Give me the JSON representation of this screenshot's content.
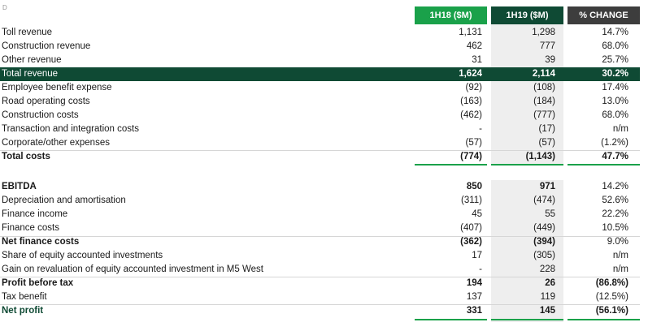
{
  "corner_mark": "D",
  "columns": {
    "h1_2018": "1H18 ($M)",
    "h1_2019": "1H19 ($M)",
    "change": "% CHANGE"
  },
  "section1": [
    {
      "label": "Toll revenue",
      "h18": "1,131",
      "h19": "1,298",
      "chg": "14.7%"
    },
    {
      "label": "Construction revenue",
      "h18": "462",
      "h19": "777",
      "chg": "68.0%"
    },
    {
      "label": "Other revenue",
      "h18": "31",
      "h19": "39",
      "chg": "25.7%"
    },
    {
      "label": "Total revenue",
      "h18": "1,624",
      "h19": "2,114",
      "chg": "30.2%"
    },
    {
      "label": "Employee benefit expense",
      "h18": "(92)",
      "h19": "(108)",
      "chg": "17.4%"
    },
    {
      "label": "Road operating costs",
      "h18": "(163)",
      "h19": "(184)",
      "chg": "13.0%"
    },
    {
      "label": "Construction costs",
      "h18": "(462)",
      "h19": "(777)",
      "chg": "68.0%"
    },
    {
      "label": "Transaction and integration costs",
      "h18": "-",
      "h19": "(17)",
      "chg": "n/m"
    },
    {
      "label": "Corporate/other expenses",
      "h18": "(57)",
      "h19": "(57)",
      "chg": "(1.2%)"
    },
    {
      "label": "Total costs",
      "h18": "(774)",
      "h19": "(1,143)",
      "chg": "47.7%"
    }
  ],
  "section2": [
    {
      "label": "EBITDA",
      "h18": "850",
      "h19": "971",
      "chg": "14.2%"
    },
    {
      "label": "Depreciation and amortisation",
      "h18": "(311)",
      "h19": "(474)",
      "chg": "52.6%"
    },
    {
      "label": "Finance income",
      "h18": "45",
      "h19": "55",
      "chg": "22.2%"
    },
    {
      "label": "Finance costs",
      "h18": "(407)",
      "h19": "(449)",
      "chg": "10.5%"
    },
    {
      "label": "Net finance costs",
      "h18": "(362)",
      "h19": "(394)",
      "chg": "9.0%"
    },
    {
      "label": "Share of equity accounted investments",
      "h18": "17",
      "h19": "(305)",
      "chg": "n/m"
    },
    {
      "label": "Gain on revaluation of equity accounted investment in M5 West",
      "h18": "-",
      "h19": "228",
      "chg": "n/m"
    },
    {
      "label": "Profit before tax",
      "h18": "194",
      "h19": "26",
      "chg": "(86.8%)"
    },
    {
      "label": "Tax benefit",
      "h18": "137",
      "h19": "119",
      "chg": "(12.5%)"
    },
    {
      "label": "Net profit",
      "h18": "331",
      "h19": "145",
      "chg": "(56.1%)"
    }
  ]
}
